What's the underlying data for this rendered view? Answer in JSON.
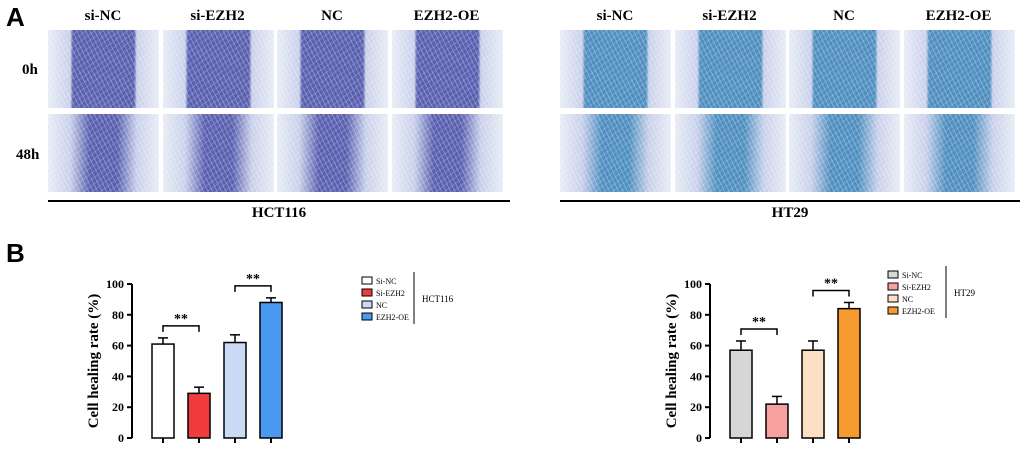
{
  "panelA": {
    "letter": "A",
    "row_labels": [
      "0h",
      "48h"
    ],
    "hct116": {
      "group_label": "HCT116",
      "columns": [
        "si-NC",
        "si-EZH2",
        "NC",
        "EZH2-OE"
      ],
      "image_tint": "#5a60b0"
    },
    "ht29": {
      "group_label": "HT29",
      "columns": [
        "si-NC",
        "si-EZH2",
        "NC",
        "EZH2-OE"
      ],
      "image_tint": "#4f8fc0"
    }
  },
  "panelB": {
    "letter": "B"
  },
  "chart_data": [
    {
      "type": "bar",
      "ylabel": "Cell healing rate (%)",
      "ylim": [
        0,
        100
      ],
      "yticks": [
        0,
        20,
        40,
        60,
        80,
        100
      ],
      "categories": [
        "Si-NC",
        "Si-EZH2",
        "NC",
        "EZH2-OE"
      ],
      "values": [
        61,
        29,
        62,
        88
      ],
      "errors": [
        4,
        4,
        5,
        3
      ],
      "colors": [
        "#ffffff",
        "#f03c3c",
        "#c9daf5",
        "#4c9af0"
      ],
      "legend_title": "HCT116",
      "significance": [
        {
          "from": 0,
          "to": 1,
          "label": "**"
        },
        {
          "from": 2,
          "to": 3,
          "label": "**"
        }
      ]
    },
    {
      "type": "bar",
      "ylabel": "Cell healing rate (%)",
      "ylim": [
        0,
        100
      ],
      "yticks": [
        0,
        20,
        40,
        60,
        80,
        100
      ],
      "categories": [
        "Si-NC",
        "Si-EZH2",
        "NC",
        "EZH2-OE"
      ],
      "values": [
        57,
        22,
        57,
        84
      ],
      "errors": [
        6,
        5,
        6,
        4
      ],
      "colors": [
        "#d6d6d6",
        "#f7a0a0",
        "#fde0c4",
        "#f79a30"
      ],
      "legend_title": "HT29",
      "significance": [
        {
          "from": 0,
          "to": 1,
          "label": "**"
        },
        {
          "from": 2,
          "to": 3,
          "label": "**"
        }
      ]
    }
  ]
}
